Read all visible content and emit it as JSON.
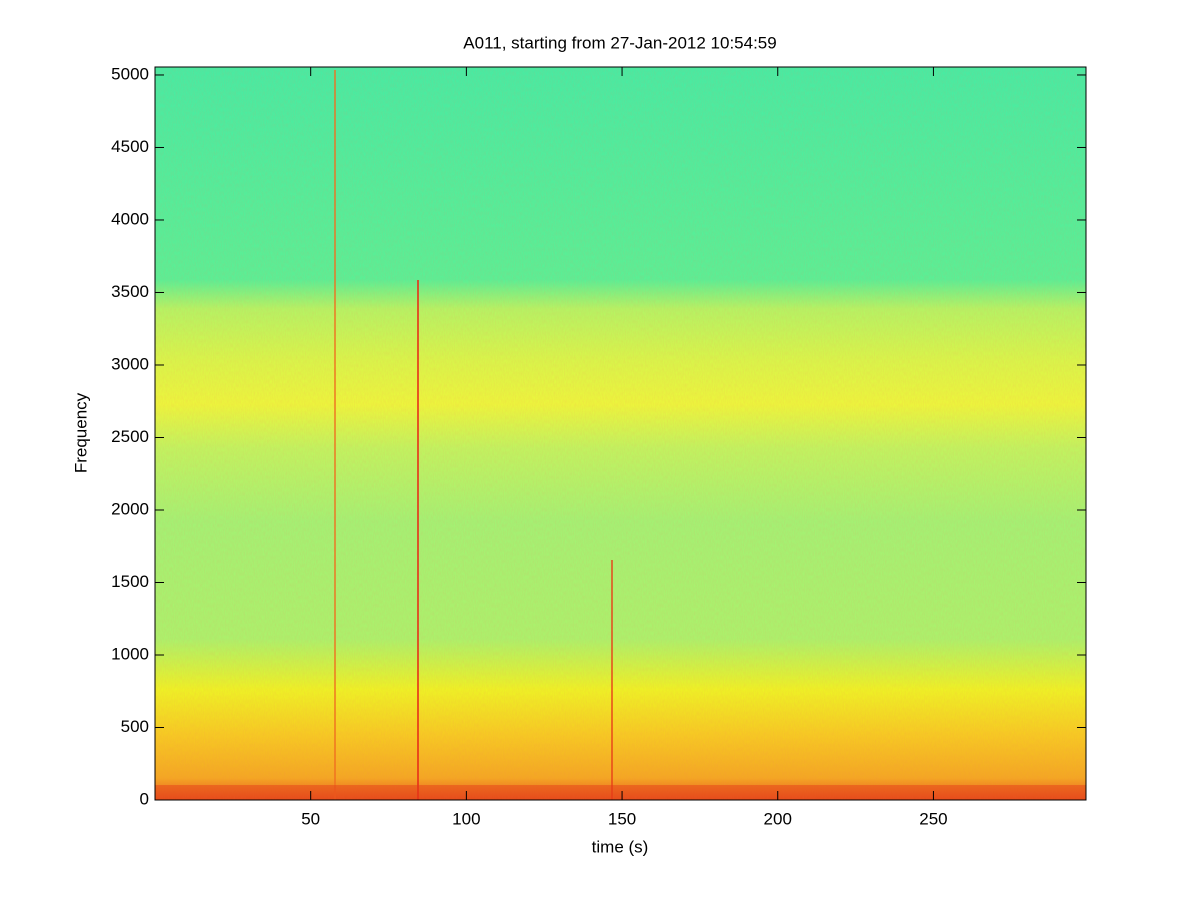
{
  "chart_data": {
    "type": "spectrogram",
    "title": "A011, starting from 27-Jan-2012 10:54:59",
    "x_label": "time (s)",
    "y_label": "Frequency",
    "xlim": [
      0,
      299
    ],
    "xticks": [
      50,
      100,
      150,
      200,
      250
    ],
    "ylim": [
      0,
      5055
    ],
    "yticks": [
      0,
      500,
      1000,
      1500,
      2000,
      2500,
      3000,
      3500,
      4000,
      4500,
      5000
    ]
  }
}
